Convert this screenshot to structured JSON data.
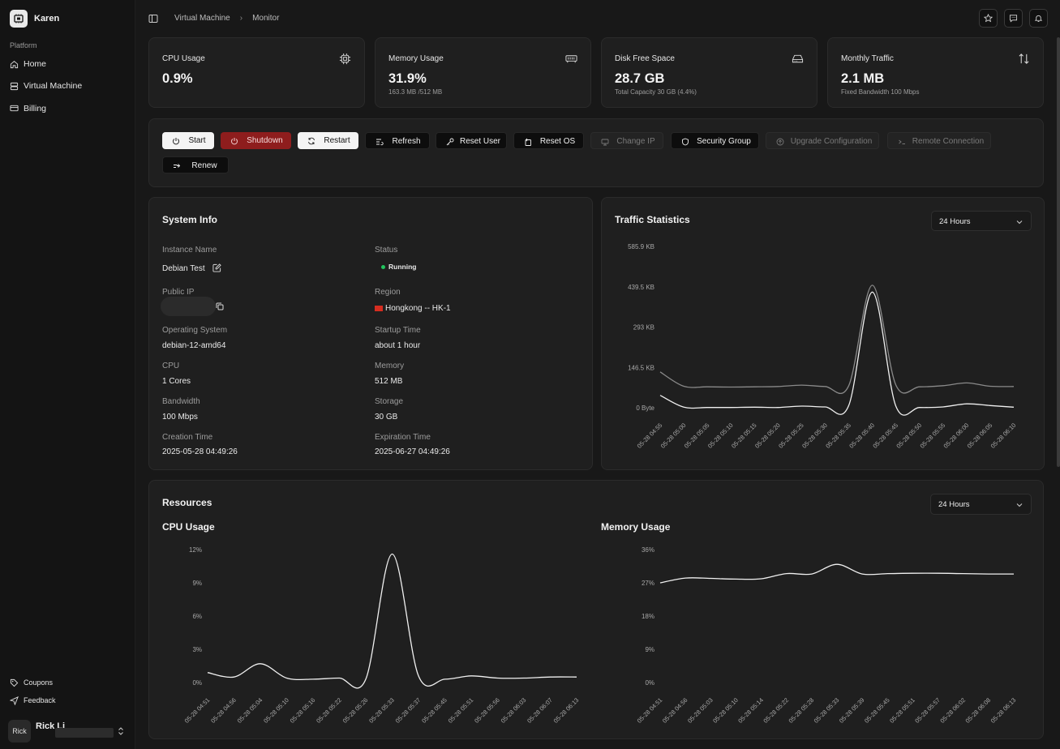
{
  "app": {
    "name": "Karen"
  },
  "sidebar": {
    "group": "Platform",
    "items": [
      {
        "label": "Home",
        "icon": "home-icon"
      },
      {
        "label": "Virtual Machine",
        "icon": "server-icon"
      },
      {
        "label": "Billing",
        "icon": "card-icon"
      }
    ],
    "footer": [
      {
        "label": "Coupons",
        "icon": "tag-icon"
      },
      {
        "label": "Feedback",
        "icon": "send-icon"
      }
    ],
    "user": {
      "avatar": "Rick",
      "name": "Rick Li"
    }
  },
  "breadcrumb": [
    "Virtual Machine",
    "Monitor"
  ],
  "stats": [
    {
      "title": "CPU Usage",
      "value": "0.9%",
      "sub": "",
      "icon": "cpu-icon"
    },
    {
      "title": "Memory Usage",
      "value": "31.9%",
      "sub": "163.3 MB /512 MB",
      "icon": "memory-icon"
    },
    {
      "title": "Disk Free Space",
      "value": "28.7 GB",
      "sub": "Total Capacity 30 GB (4.4%)",
      "icon": "disk-icon"
    },
    {
      "title": "Monthly Traffic",
      "value": "2.1 MB",
      "sub": "Fixed Bandwidth 100 Mbps",
      "icon": "arrows-updown-icon"
    }
  ],
  "actions": [
    {
      "label": "Start",
      "style": "light",
      "enabled": true
    },
    {
      "label": "Shutdown",
      "style": "danger",
      "enabled": true
    },
    {
      "label": "Restart",
      "style": "light",
      "enabled": true
    },
    {
      "label": "Refresh",
      "style": "dark",
      "enabled": true
    },
    {
      "label": "Reset User",
      "style": "dark",
      "enabled": true
    },
    {
      "label": "Reset OS",
      "style": "dark",
      "enabled": true
    },
    {
      "label": "Change IP",
      "style": "disabled",
      "enabled": false
    },
    {
      "label": "Security Group",
      "style": "dark",
      "enabled": true
    },
    {
      "label": "Upgrade Configuration",
      "style": "disabled",
      "enabled": false
    },
    {
      "label": "Remote Connection",
      "style": "disabled",
      "enabled": false
    },
    {
      "label": "Renew",
      "style": "dark",
      "enabled": true
    }
  ],
  "system_info": {
    "title": "System Info",
    "instance_name_label": "Instance Name",
    "instance_name": "Debian Test",
    "status_label": "Status",
    "status": "Running",
    "public_ip_label": "Public IP",
    "region_label": "Region",
    "region": "Hongkong -- HK-1",
    "os_label": "Operating System",
    "os": "debian-12-amd64",
    "startup_label": "Startup Time",
    "startup": "about 1 hour",
    "cpu_label": "CPU",
    "cpu": "1 Cores",
    "memory_label": "Memory",
    "memory": "512 MB",
    "bandwidth_label": "Bandwidth",
    "bandwidth": "100 Mbps",
    "storage_label": "Storage",
    "storage": "30 GB",
    "creation_label": "Creation Time",
    "creation": "2025-05-28 04:49:26",
    "expiration_label": "Expiration Time",
    "expiration": "2025-06-27 04:49:26"
  },
  "traffic": {
    "title": "Traffic Statistics",
    "range": "24 Hours"
  },
  "resources": {
    "title": "Resources",
    "range": "24 Hours",
    "cpu_title": "CPU Usage",
    "mem_title": "Memory Usage"
  },
  "chart_data": [
    {
      "type": "line",
      "title": "Traffic Statistics",
      "x": [
        "05-28 04:55",
        "05-28 05:00",
        "05-28 05:05",
        "05-28 05:10",
        "05-28 05:15",
        "05-28 05:20",
        "05-28 05:25",
        "05-28 05:30",
        "05-28 05:35",
        "05-28 05:40",
        "05-28 05:45",
        "05-28 05:50",
        "05-28 05:55",
        "05-28 06:00",
        "05-28 06:05",
        "05-28 06:10"
      ],
      "yticks": [
        "0 Byte",
        "146.5 KB",
        "293 KB",
        "439.5 KB",
        "585.9 KB"
      ],
      "ylim": [
        0,
        585.9
      ],
      "yunit": "KB",
      "series": [
        {
          "values": [
            130,
            78,
            76,
            75,
            76,
            77,
            82,
            77,
            80,
            445,
            82,
            76,
            80,
            90,
            78,
            77
          ],
          "color": "#8a8a8a"
        },
        {
          "values": [
            45,
            2,
            1,
            1,
            2,
            1,
            6,
            3,
            8,
            420,
            5,
            1,
            3,
            14,
            8,
            2
          ],
          "color": "#f0f0f0"
        }
      ]
    },
    {
      "type": "line",
      "title": "CPU Usage",
      "x": [
        "05-28 04:51",
        "05-28 04:56",
        "05-28 05:04",
        "05-28 05:10",
        "05-28 05:16",
        "05-28 05:22",
        "05-28 05:26",
        "05-28 05:33",
        "05-28 05:37",
        "05-28 05:45",
        "05-28 05:51",
        "05-28 05:56",
        "05-28 06:03",
        "05-28 06:07",
        "05-28 06:13"
      ],
      "yticks": [
        "0%",
        "3%",
        "6%",
        "9%",
        "12%"
      ],
      "ylim": [
        0,
        12
      ],
      "series": [
        {
          "values": [
            0.9,
            0.5,
            1.7,
            0.4,
            0.3,
            0.4,
            0.3,
            11.6,
            0.6,
            0.3,
            0.6,
            0.4,
            0.4,
            0.5,
            0.5
          ],
          "color": "#f0f0f0"
        }
      ]
    },
    {
      "type": "line",
      "title": "Memory Usage",
      "x": [
        "05-28 04:51",
        "05-28 04:56",
        "05-28 05:03",
        "05-28 05:10",
        "05-28 05:14",
        "05-28 05:22",
        "05-28 05:28",
        "05-28 05:33",
        "05-28 05:39",
        "05-28 05:45",
        "05-28 05:51",
        "05-28 05:57",
        "05-28 06:02",
        "05-28 06:08",
        "05-28 06:13"
      ],
      "yticks": [
        "0%",
        "9%",
        "18%",
        "27%",
        "36%"
      ],
      "ylim": [
        0,
        36
      ],
      "series": [
        {
          "values": [
            27,
            28.3,
            28.2,
            28,
            28.1,
            29.5,
            29.4,
            32,
            29.4,
            29.5,
            29.6,
            29.6,
            29.5,
            29.4,
            29.4
          ],
          "color": "#f0f0f0"
        }
      ]
    }
  ]
}
